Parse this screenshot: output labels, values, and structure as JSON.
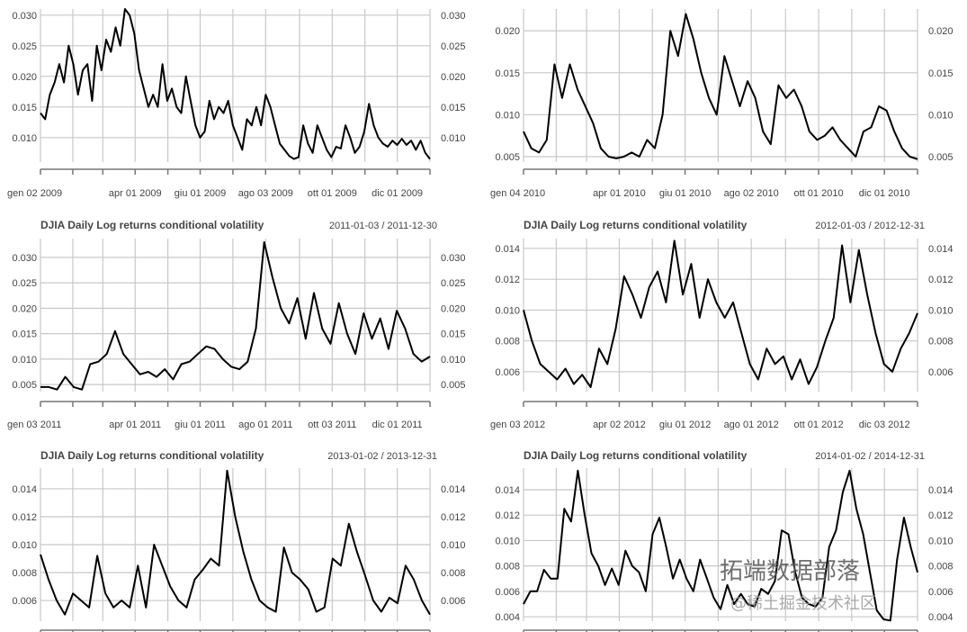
{
  "chart_data": [
    {
      "type": "line",
      "title": "",
      "range": "",
      "ylim": [
        0.006,
        0.031
      ],
      "yticks": [
        "0.010",
        "0.015",
        "0.020",
        "0.025",
        "0.030"
      ],
      "xlabels": [
        "gen 02 2009",
        "apr 01 2009",
        "giu 01 2009",
        "ago 03 2009",
        "ott 01 2009",
        "dic 01 2009"
      ],
      "values": [
        0.014,
        0.013,
        0.017,
        0.019,
        0.022,
        0.019,
        0.025,
        0.022,
        0.017,
        0.021,
        0.022,
        0.016,
        0.025,
        0.021,
        0.026,
        0.024,
        0.028,
        0.025,
        0.031,
        0.03,
        0.027,
        0.021,
        0.018,
        0.015,
        0.017,
        0.015,
        0.022,
        0.016,
        0.018,
        0.015,
        0.014,
        0.02,
        0.016,
        0.012,
        0.01,
        0.011,
        0.016,
        0.013,
        0.015,
        0.014,
        0.016,
        0.012,
        0.01,
        0.008,
        0.013,
        0.012,
        0.015,
        0.012,
        0.017,
        0.015,
        0.012,
        0.009,
        0.008,
        0.007,
        0.0065,
        0.0068,
        0.012,
        0.009,
        0.0075,
        0.012,
        0.01,
        0.008,
        0.0068,
        0.0085,
        0.0082,
        0.012,
        0.01,
        0.0075,
        0.0085,
        0.011,
        0.0155,
        0.012,
        0.01,
        0.009,
        0.0085,
        0.0095,
        0.0088,
        0.0098,
        0.0088,
        0.0095,
        0.008,
        0.0095,
        0.0075,
        0.0065
      ]
    },
    {
      "type": "line",
      "title": "",
      "range": "",
      "ylim": [
        0.00436,
        0.0226
      ],
      "yticks": [
        "0.005",
        "0.010",
        "0.015",
        "0.020"
      ],
      "xlabels": [
        "gen 04 2010",
        "apr 01 2010",
        "giu 01 2010",
        "ago 02 2010",
        "ott 01 2010",
        "dic 01 2010"
      ],
      "values": [
        0.008,
        0.006,
        0.0055,
        0.007,
        0.016,
        0.012,
        0.016,
        0.013,
        0.011,
        0.009,
        0.006,
        0.005,
        0.0048,
        0.005,
        0.0055,
        0.005,
        0.007,
        0.006,
        0.01,
        0.02,
        0.017,
        0.022,
        0.019,
        0.015,
        0.012,
        0.01,
        0.017,
        0.014,
        0.011,
        0.014,
        0.012,
        0.008,
        0.0065,
        0.0135,
        0.012,
        0.013,
        0.011,
        0.008,
        0.007,
        0.0075,
        0.0085,
        0.007,
        0.006,
        0.005,
        0.008,
        0.0085,
        0.011,
        0.0105,
        0.008,
        0.006,
        0.005,
        0.0047
      ]
    },
    {
      "type": "line",
      "title": "DJIA Daily Log returns conditional volatility",
      "range": "2011-01-03 / 2011-12-30",
      "ylim": [
        0.0036,
        0.0337
      ],
      "yticks": [
        "0.005",
        "0.010",
        "0.015",
        "0.020",
        "0.025",
        "0.030"
      ],
      "xlabels": [
        "gen 03 2011",
        "apr 01 2011",
        "giu 01 2011",
        "ago 01 2011",
        "ott 03 2011",
        "dic 01 2011"
      ],
      "values": [
        0.0045,
        0.0045,
        0.004,
        0.0065,
        0.0045,
        0.004,
        0.009,
        0.0095,
        0.011,
        0.0155,
        0.011,
        0.009,
        0.007,
        0.0075,
        0.0065,
        0.008,
        0.006,
        0.009,
        0.0095,
        0.011,
        0.0125,
        0.012,
        0.01,
        0.0085,
        0.008,
        0.0095,
        0.016,
        0.033,
        0.026,
        0.02,
        0.017,
        0.022,
        0.014,
        0.023,
        0.016,
        0.013,
        0.021,
        0.015,
        0.011,
        0.019,
        0.014,
        0.018,
        0.012,
        0.0195,
        0.016,
        0.011,
        0.0095,
        0.0105
      ]
    },
    {
      "type": "line",
      "title": "DJIA Daily Log returns conditional volatility",
      "range": "2012-01-03 / 2012-12-31",
      "ylim": [
        0.00471,
        0.01464
      ],
      "yticks": [
        "0.006",
        "0.008",
        "0.010",
        "0.012",
        "0.014"
      ],
      "xlabels": [
        "gen 03 2012",
        "apr 02 2012",
        "giu 01 2012",
        "ago 01 2012",
        "ott 01 2012",
        "dic 03 2012"
      ],
      "values": [
        0.01,
        0.008,
        0.0065,
        0.006,
        0.0055,
        0.0062,
        0.0052,
        0.0058,
        0.005,
        0.0075,
        0.0065,
        0.0088,
        0.0122,
        0.011,
        0.0095,
        0.0115,
        0.0125,
        0.0105,
        0.0145,
        0.011,
        0.013,
        0.0095,
        0.012,
        0.0105,
        0.0095,
        0.0105,
        0.0085,
        0.0065,
        0.0055,
        0.0075,
        0.0065,
        0.007,
        0.0055,
        0.0068,
        0.0052,
        0.0063,
        0.008,
        0.0095,
        0.0142,
        0.0105,
        0.0139,
        0.011,
        0.0085,
        0.0065,
        0.006,
        0.0075,
        0.0085,
        0.0098
      ]
    },
    {
      "type": "line",
      "title": "DJIA Daily Log returns conditional volatility",
      "range": "2013-01-02 / 2013-12-31",
      "ylim": [
        0.00452,
        0.01548
      ],
      "yticks": [
        "0.006",
        "0.008",
        "0.010",
        "0.012",
        "0.014"
      ],
      "xlabels": [],
      "values": [
        0.0093,
        0.0075,
        0.006,
        0.005,
        0.0065,
        0.006,
        0.0055,
        0.0092,
        0.0065,
        0.0055,
        0.006,
        0.0055,
        0.0085,
        0.0055,
        0.01,
        0.0085,
        0.007,
        0.006,
        0.0055,
        0.0075,
        0.0082,
        0.009,
        0.0085,
        0.0153,
        0.012,
        0.0095,
        0.0075,
        0.006,
        0.0055,
        0.0052,
        0.0098,
        0.008,
        0.0075,
        0.0068,
        0.0052,
        0.0055,
        0.009,
        0.0085,
        0.0115,
        0.0095,
        0.0078,
        0.006,
        0.0052,
        0.0062,
        0.0058,
        0.0085,
        0.0075,
        0.006,
        0.005
      ]
    },
    {
      "type": "line",
      "title": "DJIA Daily Log returns conditional volatility",
      "range": "2014-01-02 / 2014-12-31",
      "ylim": [
        0.00365,
        0.0157
      ],
      "yticks": [
        "0.004",
        "0.006",
        "0.008",
        "0.010",
        "0.012",
        "0.014"
      ],
      "xlabels": [],
      "values": [
        0.005,
        0.006,
        0.006,
        0.0077,
        0.007,
        0.007,
        0.0125,
        0.0115,
        0.0155,
        0.012,
        0.009,
        0.008,
        0.0065,
        0.0078,
        0.0065,
        0.0092,
        0.008,
        0.0075,
        0.006,
        0.0105,
        0.0118,
        0.0095,
        0.007,
        0.0085,
        0.007,
        0.006,
        0.0085,
        0.007,
        0.0055,
        0.0046,
        0.0065,
        0.005,
        0.0058,
        0.005,
        0.0048,
        0.0062,
        0.0058,
        0.0068,
        0.0108,
        0.0105,
        0.0075,
        0.0055,
        0.005,
        0.0048,
        0.0055,
        0.0095,
        0.0108,
        0.0138,
        0.0155,
        0.0125,
        0.0105,
        0.0075,
        0.0045,
        0.0038,
        0.0037,
        0.0085,
        0.0118,
        0.0095,
        0.0075
      ]
    }
  ],
  "watermark": {
    "brand": "拓端数据部落",
    "community": "@稀土掘金技术社区"
  }
}
